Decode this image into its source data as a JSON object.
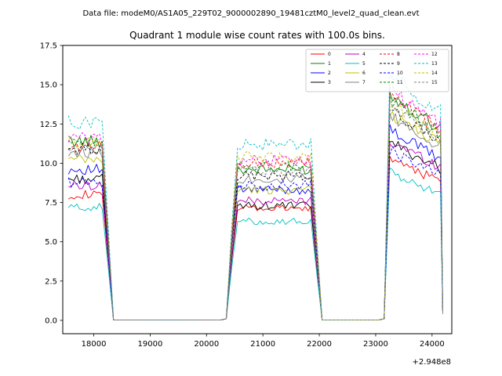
{
  "figure": {
    "suptitle": "Data file: modeM0/AS1A05_229T02_9000002890_19481cztM0_level2_quad_clean.evt",
    "offset_label": "+2.948e8"
  },
  "chart_data": {
    "type": "line",
    "title": "Quadrant 1 module wise count rates with 100.0s bins.",
    "xlabel": "",
    "ylabel": "",
    "x_offset": 294800000,
    "xlim": [
      17450,
      24350
    ],
    "ylim": [
      -0.85,
      17.5
    ],
    "xticks": [
      18000,
      19000,
      20000,
      21000,
      22000,
      23000,
      24000
    ],
    "xtick_labels": [
      "18000",
      "19000",
      "20000",
      "21000",
      "22000",
      "23000",
      "24000"
    ],
    "yticks": [
      0,
      2.5,
      5,
      7.5,
      10,
      12.5,
      15,
      17.5
    ],
    "ytick_labels": [
      "0.0",
      "2.5",
      "5.0",
      "7.5",
      "10.0",
      "12.5",
      "15.0",
      "17.5"
    ],
    "legend_position": "top-right",
    "segments": [
      {
        "start": 17550,
        "end": 18150,
        "drop_to": 18350
      },
      {
        "start": 20550,
        "end": 21850,
        "ramp_from": 20350,
        "drop_to": 22050
      },
      {
        "start": 23250,
        "end": 24150,
        "ramp_from": 23150,
        "peak_at": 23250
      }
    ],
    "gap_ranges": [
      [
        18350,
        20350
      ],
      [
        22050,
        23150
      ]
    ],
    "series": [
      {
        "name": "0",
        "color": "#ff0000",
        "dashed": false,
        "levels": [
          8.0,
          7.1,
          9.6
        ]
      },
      {
        "name": "1",
        "color": "#008000",
        "dashed": false,
        "levels": [
          11.4,
          9.6,
          13.3
        ]
      },
      {
        "name": "2",
        "color": "#0000ff",
        "dashed": false,
        "levels": [
          9.6,
          8.3,
          11.2
        ]
      },
      {
        "name": "3",
        "color": "#000000",
        "dashed": false,
        "levels": [
          9.0,
          7.3,
          10.5
        ]
      },
      {
        "name": "4",
        "color": "#bf00bf",
        "dashed": false,
        "levels": [
          8.6,
          7.6,
          10.6
        ]
      },
      {
        "name": "5",
        "color": "#00bfbf",
        "dashed": false,
        "levels": [
          7.2,
          6.3,
          8.7
        ]
      },
      {
        "name": "6",
        "color": "#bfbf00",
        "dashed": false,
        "levels": [
          10.2,
          8.3,
          12.2
        ]
      },
      {
        "name": "7",
        "color": "#808080",
        "dashed": false,
        "levels": [
          10.7,
          9.0,
          12.0
        ]
      },
      {
        "name": "8",
        "color": "#ff0000",
        "dashed": true,
        "levels": [
          11.0,
          10.0,
          13.2
        ]
      },
      {
        "name": "9",
        "color": "#000000",
        "dashed": true,
        "levels": [
          10.9,
          9.2,
          12.4
        ]
      },
      {
        "name": "10",
        "color": "#0000ff",
        "dashed": true,
        "levels": [
          8.8,
          8.6,
          10.0
        ]
      },
      {
        "name": "11",
        "color": "#008000",
        "dashed": true,
        "levels": [
          11.2,
          9.8,
          13.0
        ]
      },
      {
        "name": "12",
        "color": "#ff00ff",
        "dashed": true,
        "levels": [
          11.6,
          10.2,
          13.5
        ]
      },
      {
        "name": "13",
        "color": "#00bfbf",
        "dashed": true,
        "levels": [
          12.6,
          11.2,
          14.4
        ]
      },
      {
        "name": "14",
        "color": "#bfbf00",
        "dashed": true,
        "levels": [
          11.3,
          10.4,
          12.8
        ]
      },
      {
        "name": "15",
        "color": "#808080",
        "dashed": true,
        "levels": [
          10.9,
          9.5,
          12.6
        ]
      }
    ]
  }
}
